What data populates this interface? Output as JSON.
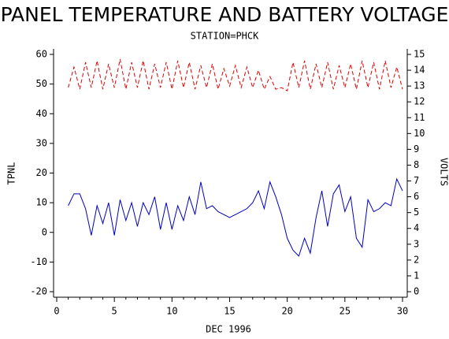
{
  "chart_data": {
    "type": "line",
    "title": "PANEL TEMPERATURE AND BATTERY VOLTAGE",
    "subtitle": "STATION=PHCK",
    "x_label": "DEC 1996",
    "y_label": "TPNL",
    "y2_label": "VOLTS",
    "x": [
      1,
      1.5,
      2,
      2.5,
      3,
      3.5,
      4,
      4.5,
      5,
      5.5,
      6,
      6.5,
      7,
      7.5,
      8,
      8.5,
      9,
      9.5,
      10,
      10.5,
      11,
      11.5,
      12,
      12.5,
      13,
      13.5,
      14,
      14.5,
      15,
      15.5,
      16,
      16.5,
      17,
      17.5,
      18,
      18.5,
      19,
      19.5,
      20,
      20.5,
      21,
      21.5,
      22,
      22.5,
      23,
      23.5,
      24,
      24.5,
      25,
      25.5,
      26,
      26.5,
      27,
      27.5,
      28,
      28.5,
      29,
      29.5,
      30
    ],
    "series": [
      {
        "color": "#0000c0",
        "axis": "y",
        "dashed": false,
        "values": [
          9,
          13,
          13,
          8,
          -1,
          9,
          3,
          10,
          -1,
          11,
          4,
          10,
          2,
          10,
          6,
          12,
          1,
          10,
          1,
          9,
          4,
          12,
          6,
          17,
          8,
          9,
          7,
          6,
          5,
          6,
          7,
          8,
          10,
          14,
          8,
          17,
          12,
          6,
          -2,
          -6,
          -8,
          -2,
          -7,
          5,
          14,
          2,
          13,
          16,
          7,
          12,
          -2,
          -5,
          11,
          7,
          8,
          10,
          9,
          18,
          14
        ]
      },
      {
        "color": "#e00000",
        "axis": "y2",
        "dashed": true,
        "values": [
          12.9,
          14.2,
          12.8,
          14.5,
          12.9,
          14.6,
          12.8,
          14.4,
          12.9,
          14.7,
          12.8,
          14.5,
          12.9,
          14.6,
          12.8,
          14.4,
          12.9,
          14.5,
          12.8,
          14.6,
          12.9,
          14.5,
          12.8,
          14.3,
          12.9,
          14.4,
          12.8,
          14.1,
          13.0,
          14.3,
          12.9,
          14.2,
          12.9,
          14.0,
          12.8,
          13.6,
          12.8,
          12.9,
          12.7,
          14.5,
          12.9,
          14.6,
          12.8,
          14.4,
          12.9,
          14.5,
          12.8,
          14.3,
          12.9,
          14.4,
          12.8,
          14.6,
          12.9,
          14.5,
          12.8,
          14.6,
          12.9,
          14.2,
          12.8
        ]
      }
    ],
    "xlim": [
      0,
      30
    ],
    "xticks": [
      0,
      5,
      10,
      15,
      20,
      25,
      30
    ],
    "ylim": [
      -20,
      60
    ],
    "yticks": [
      -20,
      -10,
      0,
      10,
      20,
      30,
      40,
      50,
      60
    ],
    "y2lim": [
      0,
      15
    ],
    "y2ticks": [
      0,
      1,
      2,
      3,
      4,
      5,
      6,
      7,
      8,
      9,
      10,
      11,
      12,
      13,
      14,
      15
    ],
    "grid": false
  }
}
